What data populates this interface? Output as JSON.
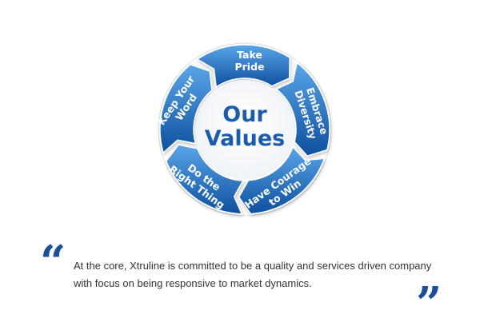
{
  "diagram": {
    "center_title_line1": "Our",
    "center_title_line2": "Values",
    "segments": [
      {
        "line1": "Take",
        "line2": "Pride"
      },
      {
        "line1": "Embrace",
        "line2": "Diversity"
      },
      {
        "line1": "Have Courage",
        "line2": "to Win"
      },
      {
        "line1": "Do the",
        "line2": "Right Thing"
      },
      {
        "line1": "Keep Your",
        "line2": "Word"
      }
    ],
    "colors": {
      "segment_light": "#4d9ae0",
      "segment_dark": "#0d4f9e",
      "center_text": "#1b5cab",
      "quote_marks": "#1b4f9a"
    }
  },
  "quote": {
    "open_mark": "“",
    "close_mark": "”",
    "text": "At the core, Xtruline is committed to be a quality and services driven company with focus on being responsive to market dynamics."
  }
}
